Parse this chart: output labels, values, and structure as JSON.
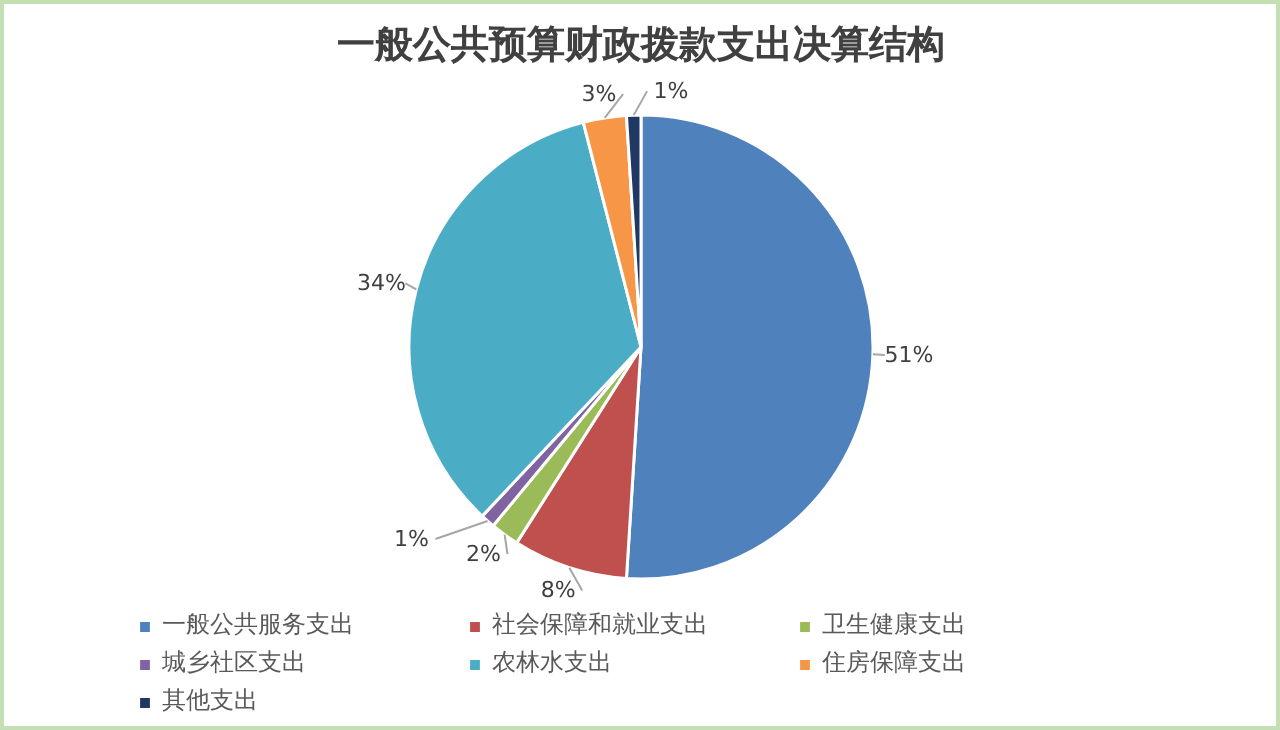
{
  "chart_data": {
    "type": "pie",
    "title": "一般公共预算财政拨款支出决算结构",
    "categories": [
      "一般公共服务支出",
      "社会保障和就业支出",
      "卫生健康支出",
      "城乡社区支出",
      "农林水支出",
      "住房保障支出",
      "其他支出"
    ],
    "values": [
      51,
      8,
      2,
      1,
      34,
      3,
      1
    ],
    "value_labels": [
      "51%",
      "8%",
      "2%",
      "1%",
      "34%",
      "3%",
      "1%"
    ],
    "colors": [
      "#4f81bd",
      "#c0504d",
      "#9bbb59",
      "#8064a2",
      "#4bacc6",
      "#f79646",
      "#1f3864"
    ],
    "legend": "bottom"
  }
}
